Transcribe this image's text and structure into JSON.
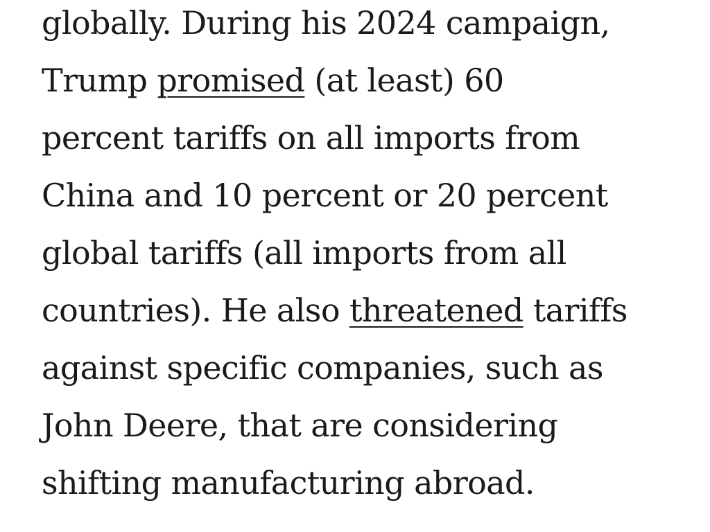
{
  "article": {
    "lines": [
      [
        "globally. During his 2024 campaign,"
      ],
      [
        "Trump ",
        {
          "link": "promised"
        },
        " (at least) 60"
      ],
      [
        "percent tariffs on all imports from"
      ],
      [
        "China and 10 percent or 20 percent"
      ],
      [
        "global tariffs (all imports from all"
      ],
      [
        "countries). He also ",
        {
          "link": "threatened"
        },
        " tariffs"
      ],
      [
        "against specific companies, such as"
      ],
      [
        "John Deere, that are considering"
      ],
      [
        "shifting manufacturing abroad."
      ]
    ]
  },
  "links": {
    "promised": "promised",
    "threatened": "threatened"
  }
}
